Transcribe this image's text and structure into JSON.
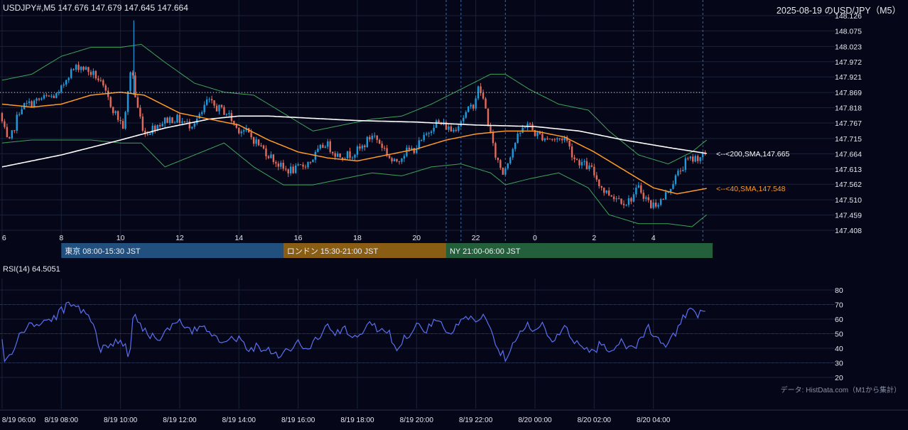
{
  "header": {
    "ohlc_label": "USDJPY#,M5 147.676 147.679 147.645 147.664",
    "title": "2025-08-19 のUSD/JPY（M5）"
  },
  "colors": {
    "background": "#050718",
    "grid": "#1b2238",
    "bull": "#1f9bdc",
    "bear": "#e36b5b",
    "sma200": "#ffffff",
    "sma40": "#ff9a26",
    "bollinger": "#3fa35a",
    "rsi": "#5b6ff0",
    "session_tokyo": "#22507e",
    "session_london": "#8a5d14",
    "session_ny": "#245f3b",
    "session_marker": "#3d6aa8"
  },
  "chart_data": [
    {
      "type": "candlestick",
      "symbol": "USDJPY#",
      "timeframe": "M5",
      "ohlc_last": {
        "open": 147.676,
        "high": 147.679,
        "low": 147.645,
        "close": 147.664
      },
      "ylim": [
        147.408,
        148.126
      ],
      "yticks": [
        "148.126",
        "148.075",
        "148.023",
        "147.972",
        "147.921",
        "147.869",
        "147.818",
        "147.767",
        "147.715",
        "147.664",
        "147.613",
        "147.562",
        "147.510",
        "147.459",
        "147.408"
      ],
      "xticks": [
        "6",
        "8",
        "10",
        "12",
        "14",
        "16",
        "18",
        "20",
        "22",
        "0",
        "2",
        "4"
      ],
      "xtick_hours": [
        6,
        8,
        10,
        12,
        14,
        16,
        18,
        20,
        22,
        24,
        26,
        28
      ],
      "time_range_hours": [
        6,
        29.8
      ],
      "dotted_level": 147.869,
      "grid": true,
      "price_anchors": [
        [
          6.0,
          147.8
        ],
        [
          6.3,
          147.69
        ],
        [
          6.7,
          147.82
        ],
        [
          7.0,
          147.83
        ],
        [
          7.5,
          147.85
        ],
        [
          8.0,
          147.86
        ],
        [
          8.3,
          147.93
        ],
        [
          8.7,
          147.96
        ],
        [
          9.0,
          147.94
        ],
        [
          9.3,
          147.92
        ],
        [
          9.6,
          147.86
        ],
        [
          9.9,
          147.8
        ],
        [
          10.2,
          147.75
        ],
        [
          10.45,
          147.97
        ],
        [
          10.6,
          147.84
        ],
        [
          10.9,
          147.73
        ],
        [
          11.3,
          147.76
        ],
        [
          11.7,
          147.78
        ],
        [
          12.0,
          147.78
        ],
        [
          12.4,
          147.76
        ],
        [
          12.8,
          147.79
        ],
        [
          13.0,
          147.84
        ],
        [
          13.3,
          147.82
        ],
        [
          13.7,
          147.8
        ],
        [
          14.0,
          147.75
        ],
        [
          14.3,
          147.74
        ],
        [
          14.8,
          147.69
        ],
        [
          15.2,
          147.65
        ],
        [
          15.6,
          147.61
        ],
        [
          16.0,
          147.61
        ],
        [
          16.5,
          147.64
        ],
        [
          17.0,
          147.7
        ],
        [
          17.4,
          147.66
        ],
        [
          17.8,
          147.66
        ],
        [
          18.2,
          147.68
        ],
        [
          18.6,
          147.73
        ],
        [
          19.0,
          147.68
        ],
        [
          19.3,
          147.63
        ],
        [
          19.7,
          147.67
        ],
        [
          20.0,
          147.68
        ],
        [
          20.3,
          147.71
        ],
        [
          20.7,
          147.77
        ],
        [
          21.0,
          147.76
        ],
        [
          21.3,
          147.74
        ],
        [
          21.6,
          147.78
        ],
        [
          22.0,
          147.83
        ],
        [
          22.2,
          147.89
        ],
        [
          22.4,
          147.82
        ],
        [
          22.7,
          147.67
        ],
        [
          23.0,
          147.6
        ],
        [
          23.4,
          147.7
        ],
        [
          23.8,
          147.77
        ],
        [
          24.1,
          147.73
        ],
        [
          24.4,
          147.72
        ],
        [
          24.8,
          147.71
        ],
        [
          25.1,
          147.72
        ],
        [
          25.4,
          147.65
        ],
        [
          25.7,
          147.63
        ],
        [
          26.0,
          147.61
        ],
        [
          26.4,
          147.54
        ],
        [
          26.8,
          147.52
        ],
        [
          27.2,
          147.5
        ],
        [
          27.6,
          147.55
        ],
        [
          28.0,
          147.49
        ],
        [
          28.4,
          147.51
        ],
        [
          28.8,
          147.58
        ],
        [
          29.2,
          147.64
        ],
        [
          29.5,
          147.65
        ],
        [
          29.8,
          147.66
        ]
      ],
      "indicators": [
        {
          "name": "200,SMA",
          "value": 147.665,
          "label": "<--<200,SMA,147.665",
          "anchors": [
            [
              6.0,
              147.62
            ],
            [
              8.0,
              147.66
            ],
            [
              10.0,
              147.71
            ],
            [
              11.5,
              147.75
            ],
            [
              13.0,
              147.78
            ],
            [
              14.0,
              147.79
            ],
            [
              15.0,
              147.79
            ],
            [
              16.0,
              147.785
            ],
            [
              18.0,
              147.775
            ],
            [
              20.0,
              147.77
            ],
            [
              22.0,
              147.76
            ],
            [
              24.0,
              147.755
            ],
            [
              25.5,
              147.74
            ],
            [
              27.0,
              147.71
            ],
            [
              28.5,
              147.685
            ],
            [
              29.8,
              147.665
            ]
          ]
        },
        {
          "name": "40,SMA",
          "value": 147.548,
          "label": "<--<40,SMA,147.548",
          "anchors": [
            [
              6.0,
              147.83
            ],
            [
              7.0,
              147.82
            ],
            [
              8.0,
              147.83
            ],
            [
              9.0,
              147.86
            ],
            [
              10.0,
              147.87
            ],
            [
              10.8,
              147.86
            ],
            [
              12.0,
              147.8
            ],
            [
              13.0,
              147.78
            ],
            [
              14.0,
              147.76
            ],
            [
              15.0,
              147.71
            ],
            [
              16.0,
              147.67
            ],
            [
              17.0,
              147.65
            ],
            [
              18.0,
              147.64
            ],
            [
              19.0,
              147.66
            ],
            [
              20.0,
              147.68
            ],
            [
              21.0,
              147.71
            ],
            [
              22.0,
              147.73
            ],
            [
              23.0,
              147.74
            ],
            [
              24.0,
              147.74
            ],
            [
              25.0,
              147.72
            ],
            [
              26.0,
              147.67
            ],
            [
              27.0,
              147.61
            ],
            [
              28.0,
              147.55
            ],
            [
              28.8,
              147.53
            ],
            [
              29.8,
              147.548
            ]
          ]
        },
        {
          "name": "Bollinger Upper",
          "anchors": [
            [
              6.0,
              147.91
            ],
            [
              7.0,
              147.93
            ],
            [
              8.0,
              147.99
            ],
            [
              9.0,
              148.02
            ],
            [
              10.0,
              148.02
            ],
            [
              10.7,
              148.03
            ],
            [
              11.5,
              147.97
            ],
            [
              12.5,
              147.9
            ],
            [
              13.5,
              147.87
            ],
            [
              14.5,
              147.86
            ],
            [
              15.5,
              147.8
            ],
            [
              16.5,
              147.74
            ],
            [
              17.5,
              147.76
            ],
            [
              18.5,
              147.78
            ],
            [
              19.5,
              147.79
            ],
            [
              20.5,
              147.83
            ],
            [
              21.5,
              147.88
            ],
            [
              22.5,
              147.93
            ],
            [
              23.0,
              147.93
            ],
            [
              23.8,
              147.88
            ],
            [
              24.8,
              147.83
            ],
            [
              25.8,
              147.81
            ],
            [
              26.5,
              147.74
            ],
            [
              27.5,
              147.66
            ],
            [
              28.5,
              147.63
            ],
            [
              29.3,
              147.67
            ],
            [
              29.8,
              147.71
            ]
          ]
        },
        {
          "name": "Bollinger Lower",
          "anchors": [
            [
              6.0,
              147.7
            ],
            [
              7.0,
              147.71
            ],
            [
              8.0,
              147.71
            ],
            [
              9.0,
              147.71
            ],
            [
              10.0,
              147.7
            ],
            [
              10.7,
              147.7
            ],
            [
              11.5,
              147.62
            ],
            [
              12.5,
              147.66
            ],
            [
              13.5,
              147.7
            ],
            [
              14.5,
              147.62
            ],
            [
              15.5,
              147.56
            ],
            [
              16.5,
              147.56
            ],
            [
              17.5,
              147.58
            ],
            [
              18.5,
              147.6
            ],
            [
              19.5,
              147.59
            ],
            [
              20.5,
              147.62
            ],
            [
              21.5,
              147.63
            ],
            [
              22.5,
              147.6
            ],
            [
              23.0,
              147.56
            ],
            [
              23.8,
              147.58
            ],
            [
              24.8,
              147.6
            ],
            [
              25.8,
              147.55
            ],
            [
              26.5,
              147.46
            ],
            [
              27.5,
              147.43
            ],
            [
              28.5,
              147.43
            ],
            [
              29.3,
              147.42
            ],
            [
              29.8,
              147.46
            ]
          ]
        }
      ],
      "sessions": [
        {
          "label": "東京 08:00-15:30 JST",
          "start": 8.0,
          "end": 15.5
        },
        {
          "label": "ロンドン 15:30-21:00 JST",
          "start": 15.5,
          "end": 21.0
        },
        {
          "label": "NY 21:00-06:00 JST",
          "start": 21.0,
          "end": 30.0
        }
      ],
      "session_marker_hours": [
        21.0,
        21.5,
        23.0,
        27.33,
        29.67
      ]
    },
    {
      "type": "line",
      "title": "RSI(14) 64.5051",
      "name": "RSI(14)",
      "last_value": 64.5051,
      "ylim": [
        15,
        85
      ],
      "yticks": [
        "80",
        "70",
        "60",
        "50",
        "40",
        "30",
        "20"
      ],
      "xticks": [
        "8/19 06:00",
        "8/19 08:00",
        "8/19 10:00",
        "8/19 12:00",
        "8/19 14:00",
        "8/19 16:00",
        "8/19 18:00",
        "8/19 20:00",
        "8/19 22:00",
        "8/20 00:00",
        "8/20 02:00",
        "8/20 04:00"
      ],
      "anchors": [
        [
          6.0,
          46
        ],
        [
          6.1,
          30
        ],
        [
          6.3,
          35
        ],
        [
          6.6,
          50
        ],
        [
          7.0,
          56
        ],
        [
          7.4,
          58
        ],
        [
          7.8,
          61
        ],
        [
          8.0,
          66
        ],
        [
          8.3,
          70
        ],
        [
          8.6,
          68
        ],
        [
          8.9,
          64
        ],
        [
          9.1,
          57
        ],
        [
          9.3,
          38
        ],
        [
          9.6,
          42
        ],
        [
          9.9,
          46
        ],
        [
          10.2,
          40
        ],
        [
          10.3,
          33
        ],
        [
          10.45,
          69
        ],
        [
          10.6,
          58
        ],
        [
          10.9,
          50
        ],
        [
          11.3,
          47
        ],
        [
          11.7,
          54
        ],
        [
          12.0,
          58
        ],
        [
          12.4,
          50
        ],
        [
          12.8,
          57
        ],
        [
          13.0,
          52
        ],
        [
          13.3,
          47
        ],
        [
          13.7,
          46
        ],
        [
          14.0,
          47
        ],
        [
          14.3,
          40
        ],
        [
          14.6,
          41
        ],
        [
          15.0,
          39
        ],
        [
          15.3,
          36
        ],
        [
          15.6,
          38
        ],
        [
          16.0,
          44
        ],
        [
          16.3,
          38
        ],
        [
          16.6,
          46
        ],
        [
          17.0,
          55
        ],
        [
          17.3,
          50
        ],
        [
          17.6,
          53
        ],
        [
          18.0,
          45
        ],
        [
          18.3,
          57
        ],
        [
          18.7,
          54
        ],
        [
          19.0,
          53
        ],
        [
          19.3,
          40
        ],
        [
          19.6,
          47
        ],
        [
          20.0,
          56
        ],
        [
          20.3,
          52
        ],
        [
          20.6,
          60
        ],
        [
          20.9,
          54
        ],
        [
          21.2,
          50
        ],
        [
          21.6,
          62
        ],
        [
          21.9,
          59
        ],
        [
          22.2,
          63
        ],
        [
          22.5,
          54
        ],
        [
          22.8,
          38
        ],
        [
          23.0,
          34
        ],
        [
          23.3,
          46
        ],
        [
          23.7,
          57
        ],
        [
          24.0,
          50
        ],
        [
          24.3,
          57
        ],
        [
          24.6,
          43
        ],
        [
          25.0,
          55
        ],
        [
          25.3,
          44
        ],
        [
          25.6,
          40
        ],
        [
          26.0,
          38
        ],
        [
          26.3,
          45
        ],
        [
          26.6,
          36
        ],
        [
          26.9,
          46
        ],
        [
          27.2,
          40
        ],
        [
          27.5,
          44
        ],
        [
          27.8,
          55
        ],
        [
          28.1,
          45
        ],
        [
          28.5,
          42
        ],
        [
          28.8,
          53
        ],
        [
          29.0,
          62
        ],
        [
          29.2,
          66
        ],
        [
          29.5,
          63
        ],
        [
          29.8,
          64.5
        ]
      ],
      "levels": [
        70,
        50,
        30
      ]
    }
  ],
  "footer": {
    "source": "データ: HistData.com（M1から集計）"
  }
}
